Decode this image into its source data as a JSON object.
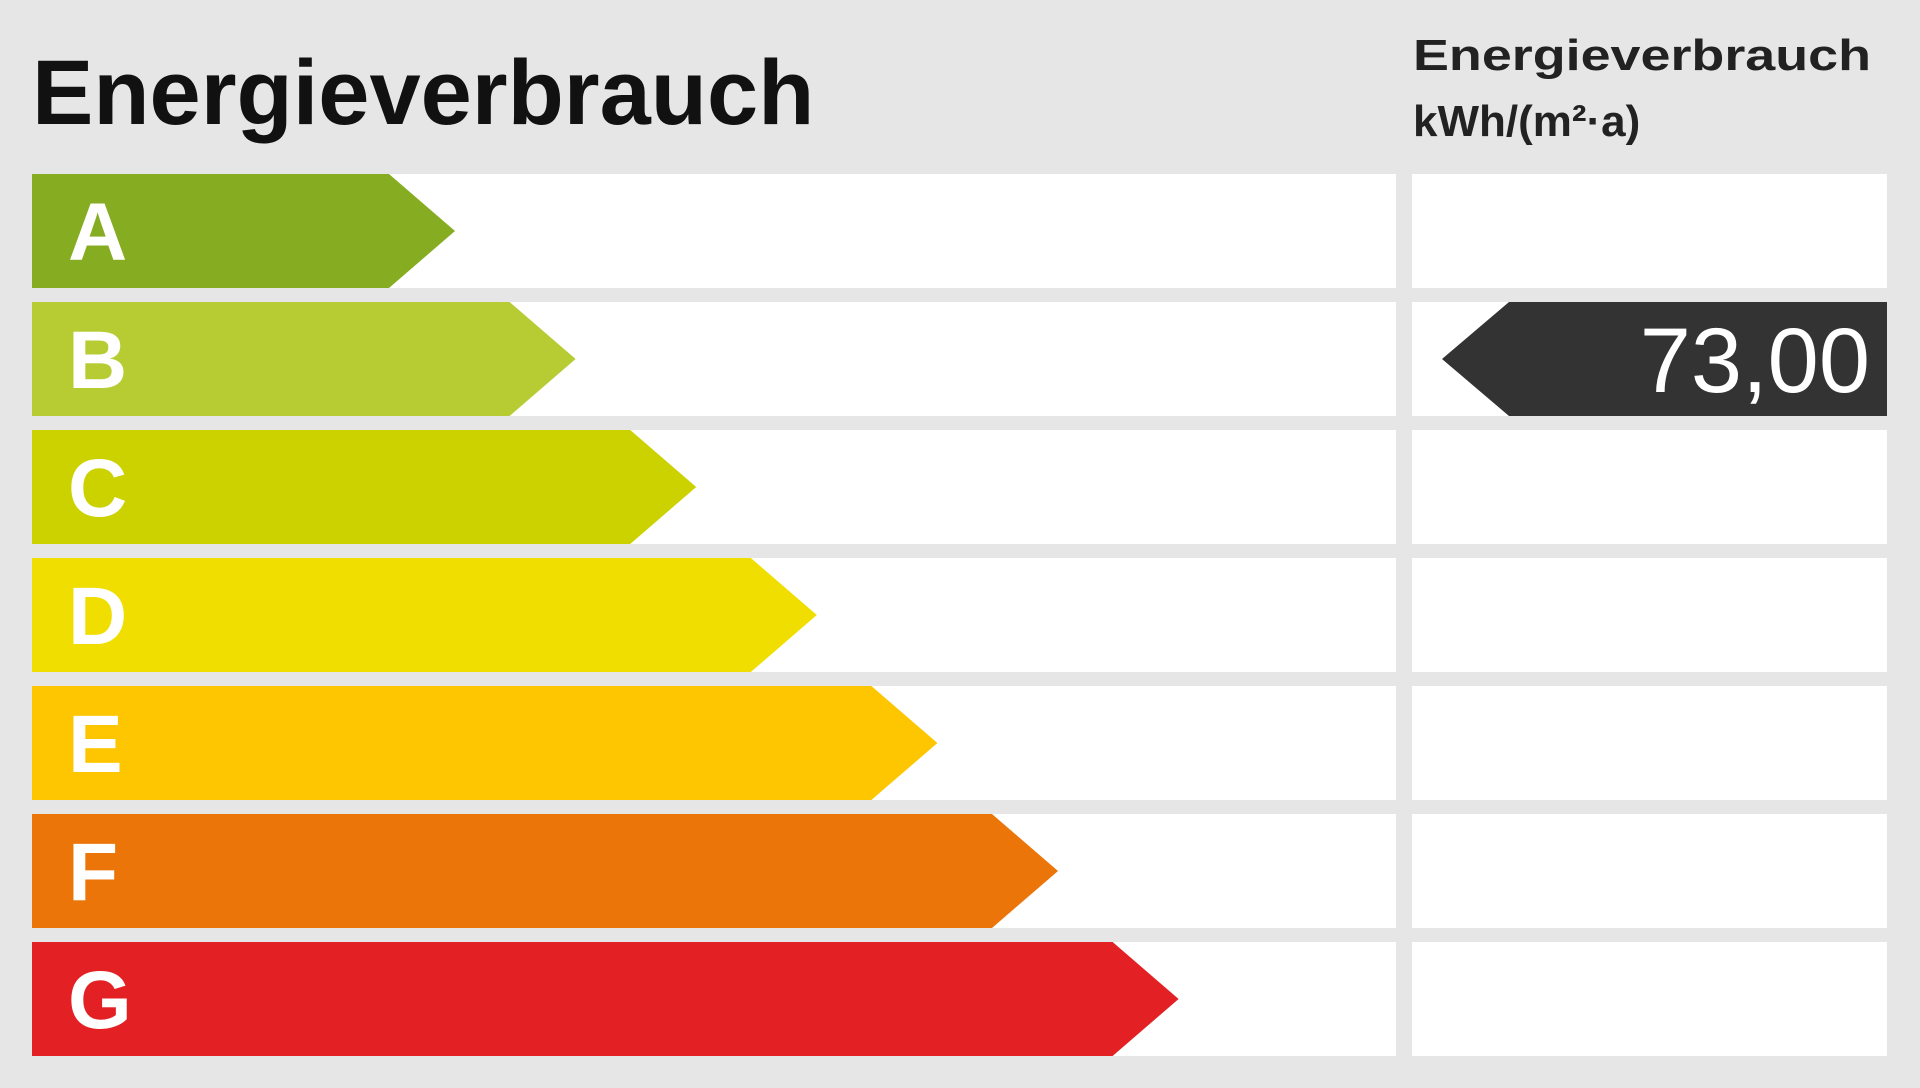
{
  "title": "Energieverbrauch",
  "column_header": {
    "title": "Energieverbrauch",
    "unit": "kWh/(m²·a)"
  },
  "rows": [
    {
      "label": "A",
      "color": "#86ad22"
    },
    {
      "label": "B",
      "color": "#b7cc32",
      "value": "73,00"
    },
    {
      "label": "C",
      "color": "#ccd200"
    },
    {
      "label": "D",
      "color": "#f0de00"
    },
    {
      "label": "E",
      "color": "#fdc600"
    },
    {
      "label": "F",
      "color": "#eb7508"
    },
    {
      "label": "G",
      "color": "#e32124"
    }
  ]
}
